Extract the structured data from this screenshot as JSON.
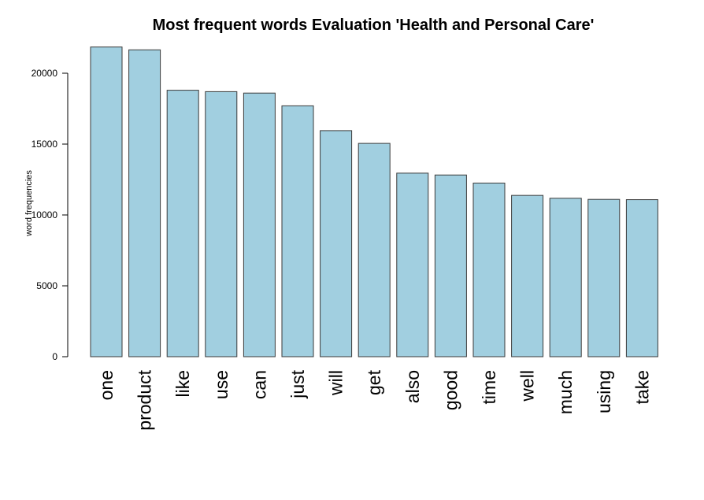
{
  "chart_data": {
    "type": "bar",
    "title": "Most frequent words  Evaluation 'Health and Personal Care'",
    "xlabel": "",
    "ylabel": "word frequencies",
    "categories": [
      "one",
      "product",
      "like",
      "use",
      "can",
      "just",
      "will",
      "get",
      "also",
      "good",
      "time",
      "well",
      "much",
      "using",
      "take"
    ],
    "values": [
      21850,
      21650,
      18800,
      18700,
      18600,
      17700,
      15950,
      15050,
      12950,
      12820,
      12250,
      11380,
      11180,
      11100,
      11080
    ],
    "ylim": [
      0,
      22000
    ],
    "yticks": [
      0,
      5000,
      10000,
      15000,
      20000
    ],
    "ytick_labels": [
      "0",
      "5000",
      "10000",
      "15000",
      "20000"
    ],
    "grid": false,
    "colors": {
      "bar_fill": "#a1cfe0",
      "bar_stroke": "#3a3a3a",
      "axis": "#000000"
    }
  }
}
